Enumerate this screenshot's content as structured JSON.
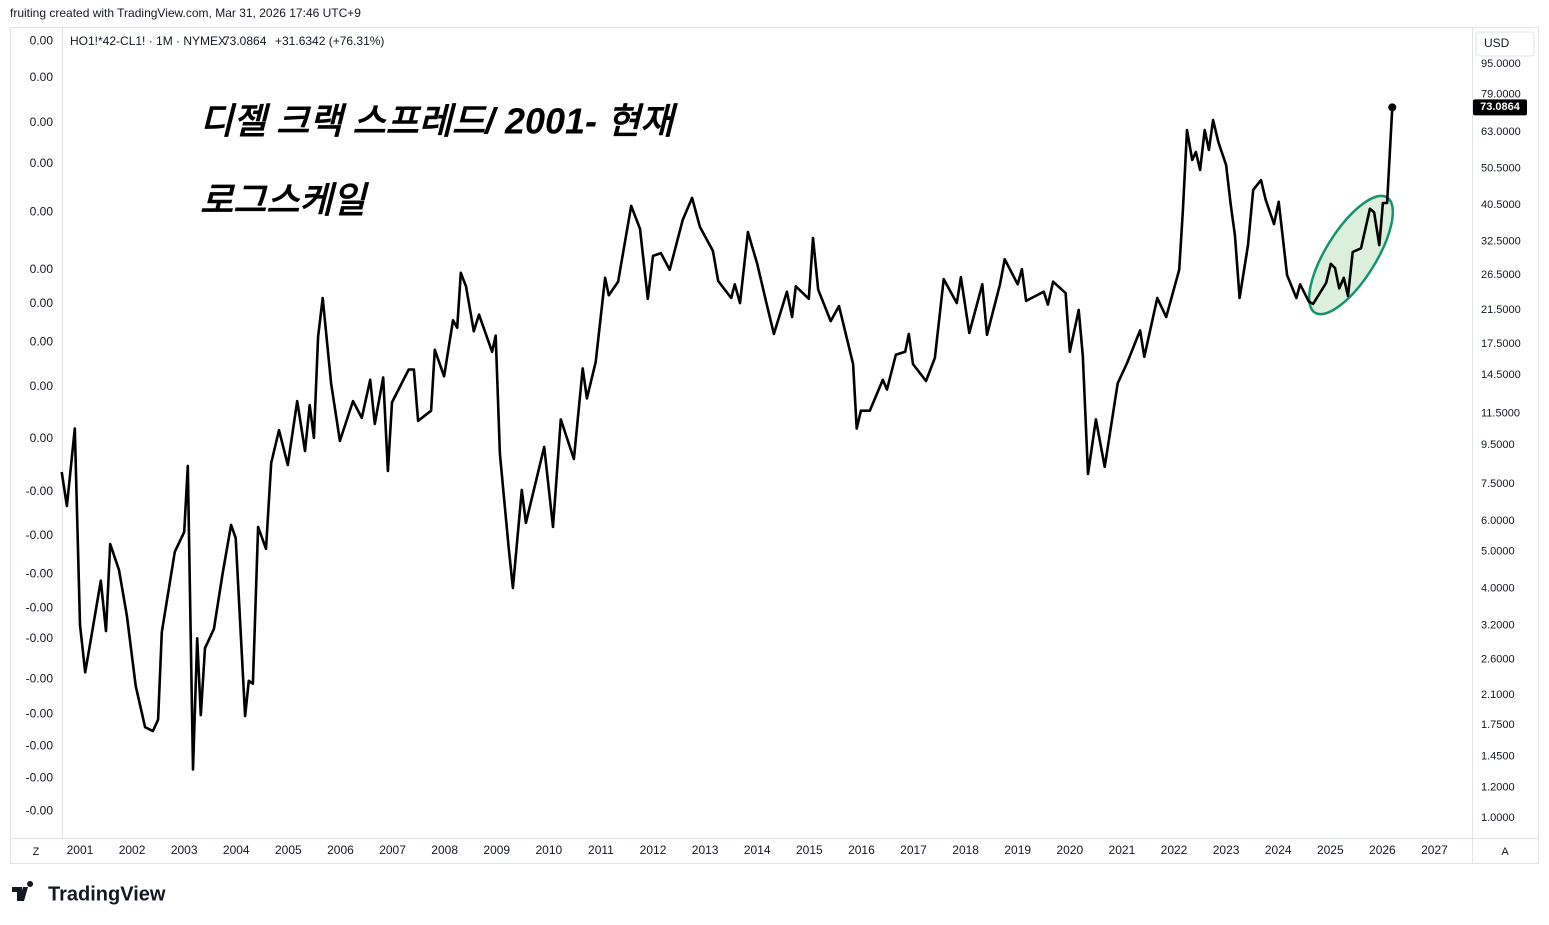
{
  "header": {
    "credit": "fruiting created with TradingView.com, Mar 31, 2026 17:46 UTC+9",
    "symbol": "HO1!*42-CL1! · 1M · NYMEX",
    "price": 73.0864,
    "change": "+31.6342 (+76.31%)",
    "currency": "USD",
    "brand": "TradingView",
    "left_button": "Z",
    "right_button": "A"
  },
  "chart_data": {
    "type": "line",
    "title": "디젤 크랙 스프레드/ 2001- 현재",
    "subtitle": "로그스케일",
    "log_scale": true,
    "grid": false,
    "xlim": [
      2000.655,
      2027.72
    ],
    "xticks": [
      2001,
      2002,
      2003,
      2004,
      2005,
      2006,
      2007,
      2008,
      2009,
      2010,
      2011,
      2012,
      2013,
      2014,
      2015,
      2016,
      2017,
      2018,
      2019,
      2020,
      2021,
      2022,
      2023,
      2024,
      2025,
      2026,
      2027
    ],
    "ylim": [
      0.886,
      118
    ],
    "yticks": [
      {
        "value": 95,
        "label": "95.0000"
      },
      {
        "value": 79,
        "label": "79.0000"
      },
      {
        "value": 63,
        "label": "63.0000"
      },
      {
        "value": 50.5,
        "label": "50.5000"
      },
      {
        "value": 40.5,
        "label": "40.5000"
      },
      {
        "value": 32.5,
        "label": "32.5000"
      },
      {
        "value": 26.5,
        "label": "26.5000"
      },
      {
        "value": 21.5,
        "label": "21.5000"
      },
      {
        "value": 17.5,
        "label": "17.5000"
      },
      {
        "value": 14.5,
        "label": "14.5000"
      },
      {
        "value": 11.5,
        "label": "11.5000"
      },
      {
        "value": 9.5,
        "label": "9.5000"
      },
      {
        "value": 7.5,
        "label": "7.5000"
      },
      {
        "value": 6,
        "label": "6.0000"
      },
      {
        "value": 5,
        "label": "5.0000"
      },
      {
        "value": 4,
        "label": "4.0000"
      },
      {
        "value": 3.2,
        "label": "3.2000"
      },
      {
        "value": 2.6,
        "label": "2.6000"
      },
      {
        "value": 2.1,
        "label": "2.1000"
      },
      {
        "value": 1.75,
        "label": "1.7500"
      },
      {
        "value": 1.45,
        "label": "1.4500"
      },
      {
        "value": 1.2,
        "label": "1.2000"
      },
      {
        "value": 1,
        "label": "1.0000"
      }
    ],
    "y2lim": [
      0.886,
      118
    ],
    "y2ticks": [
      {
        "value": 109,
        "label": "0.00"
      },
      {
        "value": 87.3,
        "label": "0.00"
      },
      {
        "value": 66.5,
        "label": "0.00"
      },
      {
        "value": 51.9,
        "label": "0.00"
      },
      {
        "value": 38.8,
        "label": "0.00"
      },
      {
        "value": 27.4,
        "label": "0.00"
      },
      {
        "value": 22.3,
        "label": "0.00"
      },
      {
        "value": 17.7,
        "label": "0.00"
      },
      {
        "value": 13.5,
        "label": "0.00"
      },
      {
        "value": 9.86,
        "label": "0.00"
      },
      {
        "value": 7.16,
        "label": "-0.00"
      },
      {
        "value": 5.49,
        "label": "-0.00"
      },
      {
        "value": 4.36,
        "label": "-0.00"
      },
      {
        "value": 3.55,
        "label": "-0.00"
      },
      {
        "value": 2.95,
        "label": "-0.00"
      },
      {
        "value": 2.31,
        "label": "-0.00"
      },
      {
        "value": 1.87,
        "label": "-0.00"
      },
      {
        "value": 1.54,
        "label": "-0.00"
      },
      {
        "value": 1.27,
        "label": "-0.00"
      },
      {
        "value": 1.04,
        "label": "-0.00"
      }
    ],
    "x": [
      2000.65,
      2000.75,
      2000.9,
      2001.0,
      2001.1,
      2001.25,
      2001.4,
      2001.5,
      2001.58,
      2001.75,
      2001.9,
      2002.07,
      2002.25,
      2002.4,
      2002.5,
      2002.57,
      2002.82,
      2003.0,
      2003.07,
      2003.17,
      2003.25,
      2003.32,
      2003.4,
      2003.57,
      2003.74,
      2003.9,
      2003.99,
      2004.17,
      2004.24,
      2004.32,
      2004.42,
      2004.57,
      2004.67,
      2004.82,
      2004.99,
      2005.17,
      2005.32,
      2005.41,
      2005.49,
      2005.57,
      2005.66,
      2005.82,
      2005.99,
      2006.24,
      2006.41,
      2006.57,
      2006.66,
      2006.82,
      2006.91,
      2006.99,
      2007.31,
      2007.41,
      2007.49,
      2007.74,
      2007.81,
      2007.99,
      2008.16,
      2008.24,
      2008.31,
      2008.41,
      2008.56,
      2008.66,
      2008.91,
      2008.98,
      2009.06,
      2009.23,
      2009.31,
      2009.48,
      2009.56,
      2009.91,
      2010.08,
      2010.23,
      2010.48,
      2010.65,
      2010.73,
      2010.9,
      2011.08,
      2011.15,
      2011.33,
      2011.58,
      2011.75,
      2011.9,
      2012.0,
      2012.15,
      2012.32,
      2012.57,
      2012.75,
      2012.9,
      2013.15,
      2013.25,
      2013.5,
      2013.57,
      2013.67,
      2013.82,
      2014.0,
      2014.17,
      2014.32,
      2014.57,
      2014.67,
      2014.74,
      2014.99,
      2015.07,
      2015.17,
      2015.41,
      2015.57,
      2015.84,
      2015.91,
      2015.99,
      2016.16,
      2016.41,
      2016.49,
      2016.66,
      2016.84,
      2016.91,
      2016.99,
      2017.24,
      2017.41,
      2017.58,
      2017.83,
      2017.91,
      2018.07,
      2018.32,
      2018.41,
      2018.66,
      2018.75,
      2019.0,
      2019.08,
      2019.16,
      2019.5,
      2019.58,
      2019.68,
      2019.92,
      2020.0,
      2020.17,
      2020.25,
      2020.35,
      2020.5,
      2020.67,
      2020.92,
      2021.1,
      2021.35,
      2021.43,
      2021.68,
      2021.85,
      2022.1,
      2022.17,
      2022.25,
      2022.35,
      2022.42,
      2022.5,
      2022.59,
      2022.67,
      2022.75,
      2022.85,
      2023.0,
      2023.09,
      2023.17,
      2023.26,
      2023.42,
      2023.52,
      2023.67,
      2023.76,
      2023.92,
      2024.01,
      2024.17,
      2024.35,
      2024.42,
      2024.59,
      2024.67,
      2024.92,
      2025.01,
      2025.09,
      2025.17,
      2025.26,
      2025.34,
      2025.43,
      2025.59,
      2025.76,
      2025.84,
      2025.94,
      2026.01,
      2026.09,
      2026.19
    ],
    "series": [
      {
        "name": "HO1!*42-CL1!",
        "color": "#000000",
        "values": [
          8.08,
          6.58,
          10.5,
          3.21,
          2.41,
          3.17,
          4.19,
          3.09,
          5.23,
          4.47,
          3.39,
          2.22,
          1.73,
          1.69,
          1.81,
          3.07,
          4.99,
          5.62,
          8.38,
          1.34,
          2.96,
          1.86,
          2.79,
          3.13,
          4.39,
          5.87,
          5.42,
          1.85,
          2.29,
          2.25,
          5.8,
          5.08,
          8.53,
          10.4,
          8.43,
          12.4,
          9.17,
          12.1,
          9.93,
          18.3,
          23.1,
          13.8,
          9.75,
          12.4,
          11.2,
          14.1,
          10.8,
          14.3,
          8.13,
          12.3,
          15.0,
          15.0,
          11.0,
          11.7,
          16.9,
          14.4,
          20.2,
          19.3,
          26.9,
          24.8,
          18.9,
          20.9,
          16.7,
          18.4,
          9.01,
          5.11,
          4.01,
          7.25,
          5.94,
          9.4,
          5.8,
          11.1,
          8.74,
          15.1,
          12.6,
          15.7,
          26.1,
          23.5,
          25.5,
          40.3,
          35.1,
          23.0,
          29.8,
          30.3,
          27.4,
          37.0,
          42.3,
          35.5,
          30.7,
          25.6,
          23.1,
          25.1,
          22.4,
          34.4,
          28.4,
          22.6,
          18.6,
          24.0,
          20.6,
          24.8,
          23.0,
          33.2,
          24.3,
          20.1,
          22.0,
          15.5,
          10.5,
          11.7,
          11.7,
          14.1,
          13.3,
          16.4,
          16.7,
          18.6,
          15.5,
          14.0,
          16.1,
          25.9,
          22.4,
          26.2,
          18.7,
          25.1,
          18.5,
          25.1,
          29.2,
          25.1,
          27.5,
          22.7,
          24.0,
          22.2,
          25.5,
          23.8,
          16.7,
          21.5,
          16.3,
          7.98,
          11.1,
          8.33,
          13.8,
          15.6,
          19.0,
          16.2,
          23.1,
          20.6,
          27.4,
          39.3,
          63.7,
          53.2,
          55.8,
          50.1,
          63.7,
          56.5,
          67.7,
          59.3,
          51.6,
          40.5,
          33.6,
          23.1,
          31.8,
          44.4,
          47.1,
          41.8,
          36.1,
          41.3,
          26.5,
          23.1,
          25.1,
          22.6,
          22.3,
          25.3,
          28.4,
          27.7,
          24.5,
          26.1,
          23.4,
          30.5,
          31.2,
          39.6,
          38.8,
          31.8,
          41.0,
          41.0,
          73.0864
        ]
      }
    ]
  }
}
